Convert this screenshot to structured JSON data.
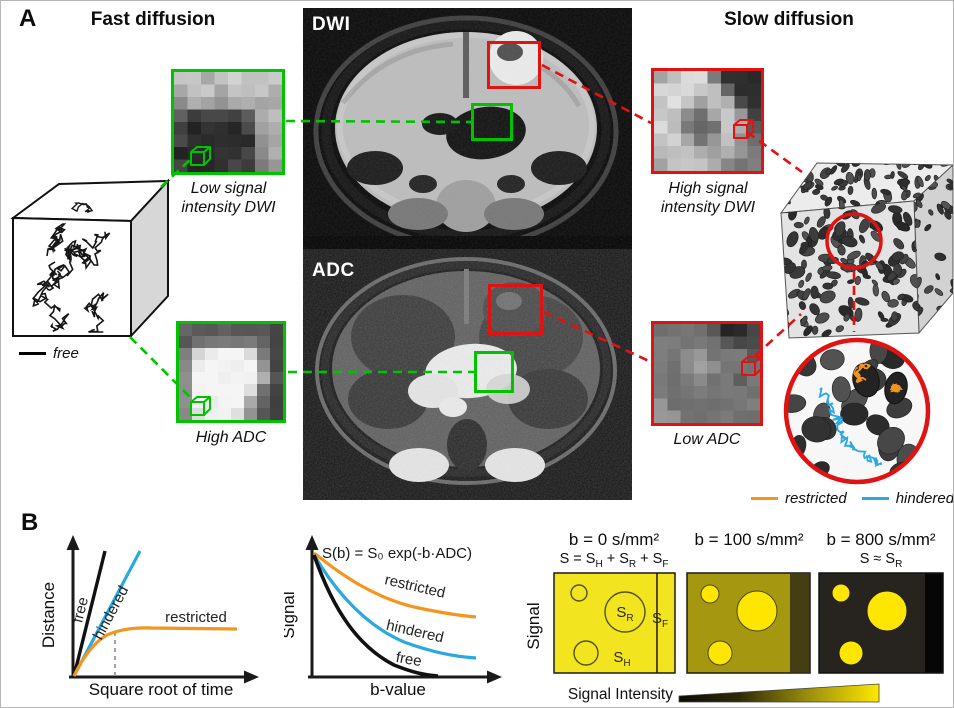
{
  "panel_a": {
    "label": "A",
    "fast_heading": "Fast diffusion",
    "slow_heading": "Slow diffusion",
    "dwi_label": "DWI",
    "adc_label": "ADC",
    "caption_low_signal": "Low signal intensity DWI",
    "caption_high_signal": "High signal intensity DWI",
    "caption_high_adc": "High ADC",
    "caption_low_adc": "Low ADC",
    "legend_free": "free",
    "legend_restricted": "restricted",
    "legend_hindered": "hindered"
  },
  "panel_b": {
    "label": "B",
    "distance_plot": {
      "ylabel": "Distance",
      "xlabel": "Square root of time",
      "free_label": "free",
      "hindered_label": "hindered",
      "restricted_label": "restricted"
    },
    "signal_plot": {
      "ylabel": "Signal",
      "xlabel": "b-value",
      "equation": "S(b) = S₀ exp(-b·ADC)",
      "restricted_label": "restricted",
      "hindered_label": "hindered",
      "free_label": "free"
    },
    "compartment_plot": {
      "ylabel": "Signal",
      "box1_title": "b = 0 s/mm²",
      "box1_subtitle": "S = S<sub>H</sub> + S<sub>R</sub> + S<sub>F</sub>",
      "box2_title": "b = 100 s/mm²",
      "box3_title": "b = 800 s/mm²",
      "box3_subtitle": "S ≈ S<sub>R</sub>",
      "sr_label": "S<sub>R</sub>",
      "sh_label": "S<sub>H</sub>",
      "sf_label": "S<sub>F</sub>",
      "gradient_label": "Signal Intensity"
    }
  },
  "colors": {
    "green": "#00c300",
    "red": "#e01212",
    "orange": "#f5941e",
    "blue": "#2ba8e0",
    "yellow1": "#f2e41f",
    "olive2": "#a5970f",
    "olive2_strip": "#443e12",
    "dark3": "#272420",
    "dark3_strip": "#060606"
  }
}
